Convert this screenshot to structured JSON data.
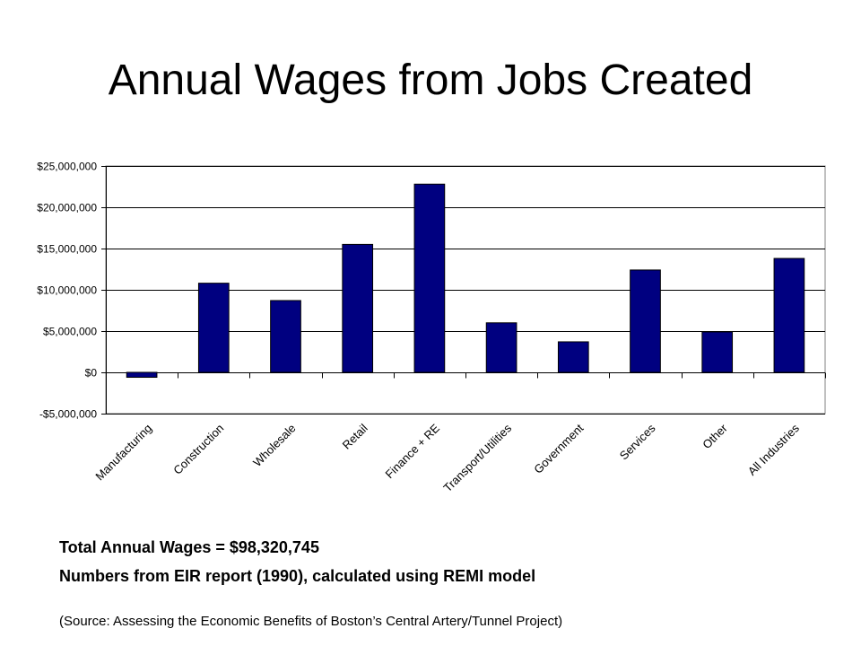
{
  "slide": {
    "title": "Annual Wages from Jobs Created",
    "note_total": "Total Annual Wages = $98,320,745",
    "note_source": "Numbers from EIR report (1990), calculated using REMI model",
    "citation": "(Source: Assessing the Economic Benefits of Boston’s Central Artery/Tunnel Project)"
  },
  "chart_data": {
    "type": "bar",
    "title": "",
    "xlabel": "",
    "ylabel": "",
    "ylim": [
      -5000000,
      25000000
    ],
    "grid": true,
    "yticks": [
      25000000,
      20000000,
      15000000,
      10000000,
      5000000,
      0,
      -5000000
    ],
    "ytick_labels": [
      "$25,000,000",
      "$20,000,000",
      "$15,000,000",
      "$10,000,000",
      "$5,000,000",
      "$0",
      "-$5,000,000"
    ],
    "categories": [
      "Manufacturing",
      "Construction",
      "Wholesale",
      "Retail",
      "Finance + RE",
      "Transport/Utilities",
      "Government",
      "Services",
      "Other",
      "All Industries"
    ],
    "values": [
      -600000,
      10800000,
      8700000,
      15500000,
      22800000,
      6000000,
      3700000,
      12400000,
      4900000,
      13800000
    ],
    "bar_color": "#000080"
  }
}
